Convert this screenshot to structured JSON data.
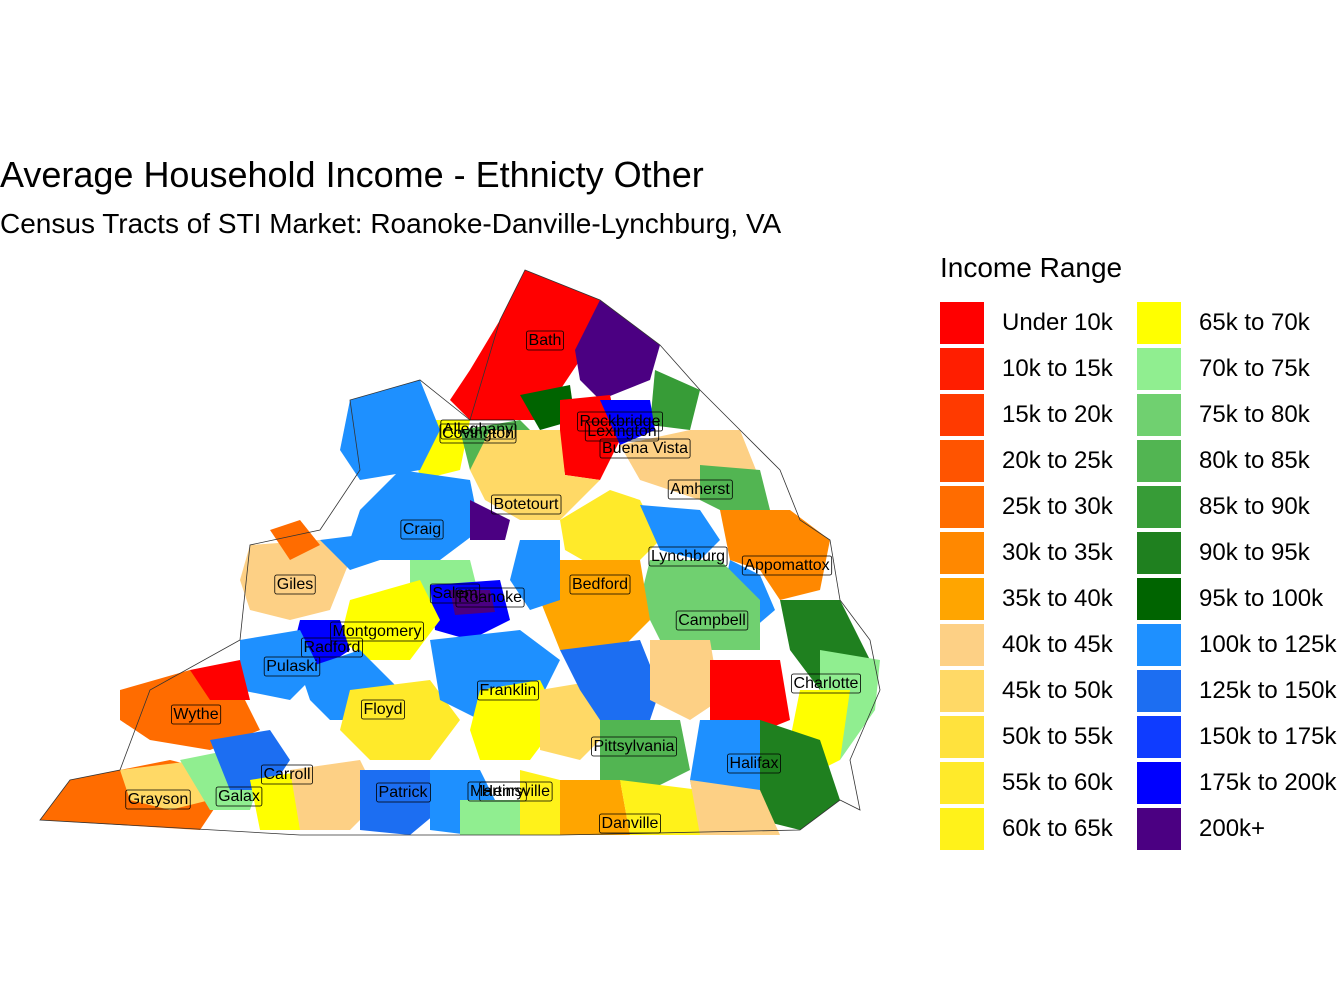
{
  "title": "Average Household Income - Ethnicty Other",
  "subtitle": "Census Tracts of STI Market: Roanoke-Danville-Lynchburg, VA",
  "legend": {
    "title": "Income Range",
    "items": [
      {
        "label": "Under 10k",
        "color": "#ff0000"
      },
      {
        "label": "10k to 15k",
        "color": "#ff1e00"
      },
      {
        "label": "15k to 20k",
        "color": "#ff3a00"
      },
      {
        "label": "20k to 25k",
        "color": "#ff5400"
      },
      {
        "label": "25k to 30k",
        "color": "#ff6c00"
      },
      {
        "label": "30k to 35k",
        "color": "#ff8800"
      },
      {
        "label": "35k to 40k",
        "color": "#ffa500"
      },
      {
        "label": "40k to 45k",
        "color": "#fdd085"
      },
      {
        "label": "45k to 50k",
        "color": "#ffd966"
      },
      {
        "label": "50k to 55k",
        "color": "#ffe23d"
      },
      {
        "label": "55k to 60k",
        "color": "#ffea2a"
      },
      {
        "label": "60k to 65k",
        "color": "#fff21a"
      },
      {
        "label": "65k to 70k",
        "color": "#ffff00"
      },
      {
        "label": "70k to 75k",
        "color": "#90ee90"
      },
      {
        "label": "75k to 80k",
        "color": "#70d070"
      },
      {
        "label": "80k to 85k",
        "color": "#52b552"
      },
      {
        "label": "85k to 90k",
        "color": "#379c37"
      },
      {
        "label": "90k to 95k",
        "color": "#1f801f"
      },
      {
        "label": "95k to 100k",
        "color": "#006400"
      },
      {
        "label": "100k to 125k",
        "color": "#1e90ff"
      },
      {
        "label": "125k to 150k",
        "color": "#1c6ef2"
      },
      {
        "label": "150k to 175k",
        "color": "#0f3cff"
      },
      {
        "label": "175k to 200k",
        "color": "#0000ff"
      },
      {
        "label": "200k+",
        "color": "#4b0082"
      }
    ]
  },
  "counties": [
    {
      "name": "Bath",
      "color": "#ff0000"
    },
    {
      "name": "Alleghany",
      "color": "#ffff00"
    },
    {
      "name": "Covington",
      "color": "#ffff00"
    },
    {
      "name": "Rockbridge",
      "color": "#ff0000"
    },
    {
      "name": "Lexington",
      "color": "#ff0000"
    },
    {
      "name": "Buena Vista",
      "color": "#fdd085"
    },
    {
      "name": "Amherst",
      "color": "#fdd085"
    },
    {
      "name": "Botetourt",
      "color": "#ffd966"
    },
    {
      "name": "Craig",
      "color": "#1e90ff"
    },
    {
      "name": "Lynchburg",
      "color": "#ffff00"
    },
    {
      "name": "Appomattox",
      "color": "#ffa500"
    },
    {
      "name": "Giles",
      "color": "#fdd085"
    },
    {
      "name": "Bedford",
      "color": "#ffe23d"
    },
    {
      "name": "Salem",
      "color": "#1e90ff"
    },
    {
      "name": "Roanoke",
      "color": "#4b0082"
    },
    {
      "name": "Campbell",
      "color": "#70d070"
    },
    {
      "name": "Montgomery",
      "color": "#ffe23d"
    },
    {
      "name": "Radford",
      "color": "#ff0000"
    },
    {
      "name": "Pulaski",
      "color": "#1e90ff"
    },
    {
      "name": "Charlotte",
      "color": "#ffff00"
    },
    {
      "name": "Franklin",
      "color": "#1e90ff"
    },
    {
      "name": "Wythe",
      "color": "#ff6c00"
    },
    {
      "name": "Floyd",
      "color": "#ffe23d"
    },
    {
      "name": "Pittsylvania",
      "color": "#ffd966"
    },
    {
      "name": "Halifax",
      "color": "#ffe23d"
    },
    {
      "name": "Carroll",
      "color": "#ffff00"
    },
    {
      "name": "Grayson",
      "color": "#ffd966"
    },
    {
      "name": "Galax",
      "color": "#70d070"
    },
    {
      "name": "Patrick",
      "color": "#1c6ef2"
    },
    {
      "name": "Henry",
      "color": "#ffe23d"
    },
    {
      "name": "Martinsville",
      "color": "#ffe23d"
    },
    {
      "name": "Danville",
      "color": "#ffe23d"
    }
  ]
}
